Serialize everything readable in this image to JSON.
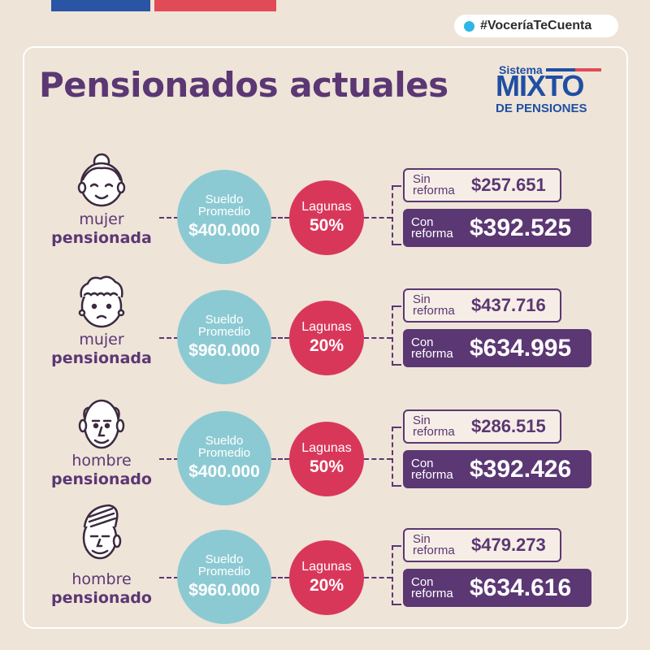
{
  "hashtag": "#VoceríaTeCuenta",
  "title": "Pensionados actuales",
  "logo": {
    "top": "Sistema",
    "main": "MIXTO",
    "bottom": "DE PENSIONES"
  },
  "labels": {
    "salary_line1": "Sueldo",
    "salary_line2": "Promedio",
    "gaps": "Lagunas",
    "without_line1": "Sin",
    "without_line2": "reforma",
    "with_line1": "Con",
    "with_line2": "reforma"
  },
  "rows": [
    {
      "avatar_icon": "older-woman-bun-icon",
      "person_line1": "mujer",
      "person_line2": "pensionada",
      "salary": "$400.000",
      "gaps": "50%",
      "without_reform": "$257.651",
      "with_reform": "$392.525"
    },
    {
      "avatar_icon": "older-woman-curly-icon",
      "person_line1": "mujer",
      "person_line2": "pensionada",
      "salary": "$960.000",
      "gaps": "20%",
      "without_reform": "$437.716",
      "with_reform": "$634.995"
    },
    {
      "avatar_icon": "older-man-bald-icon",
      "person_line1": "hombre",
      "person_line2": "pensionado",
      "salary": "$400.000",
      "gaps": "50%",
      "without_reform": "$286.515",
      "with_reform": "$392.426"
    },
    {
      "avatar_icon": "older-man-combed-icon",
      "person_line1": "hombre",
      "person_line2": "pensionado",
      "salary": "$960.000",
      "gaps": "20%",
      "without_reform": "$479.273",
      "with_reform": "$634.616"
    }
  ],
  "colors": {
    "background": "#efe4d8",
    "purple": "#5b3773",
    "teal": "#8ccad3",
    "pink": "#d9375a",
    "blue": "#2a55a4",
    "red": "#e14b57"
  }
}
